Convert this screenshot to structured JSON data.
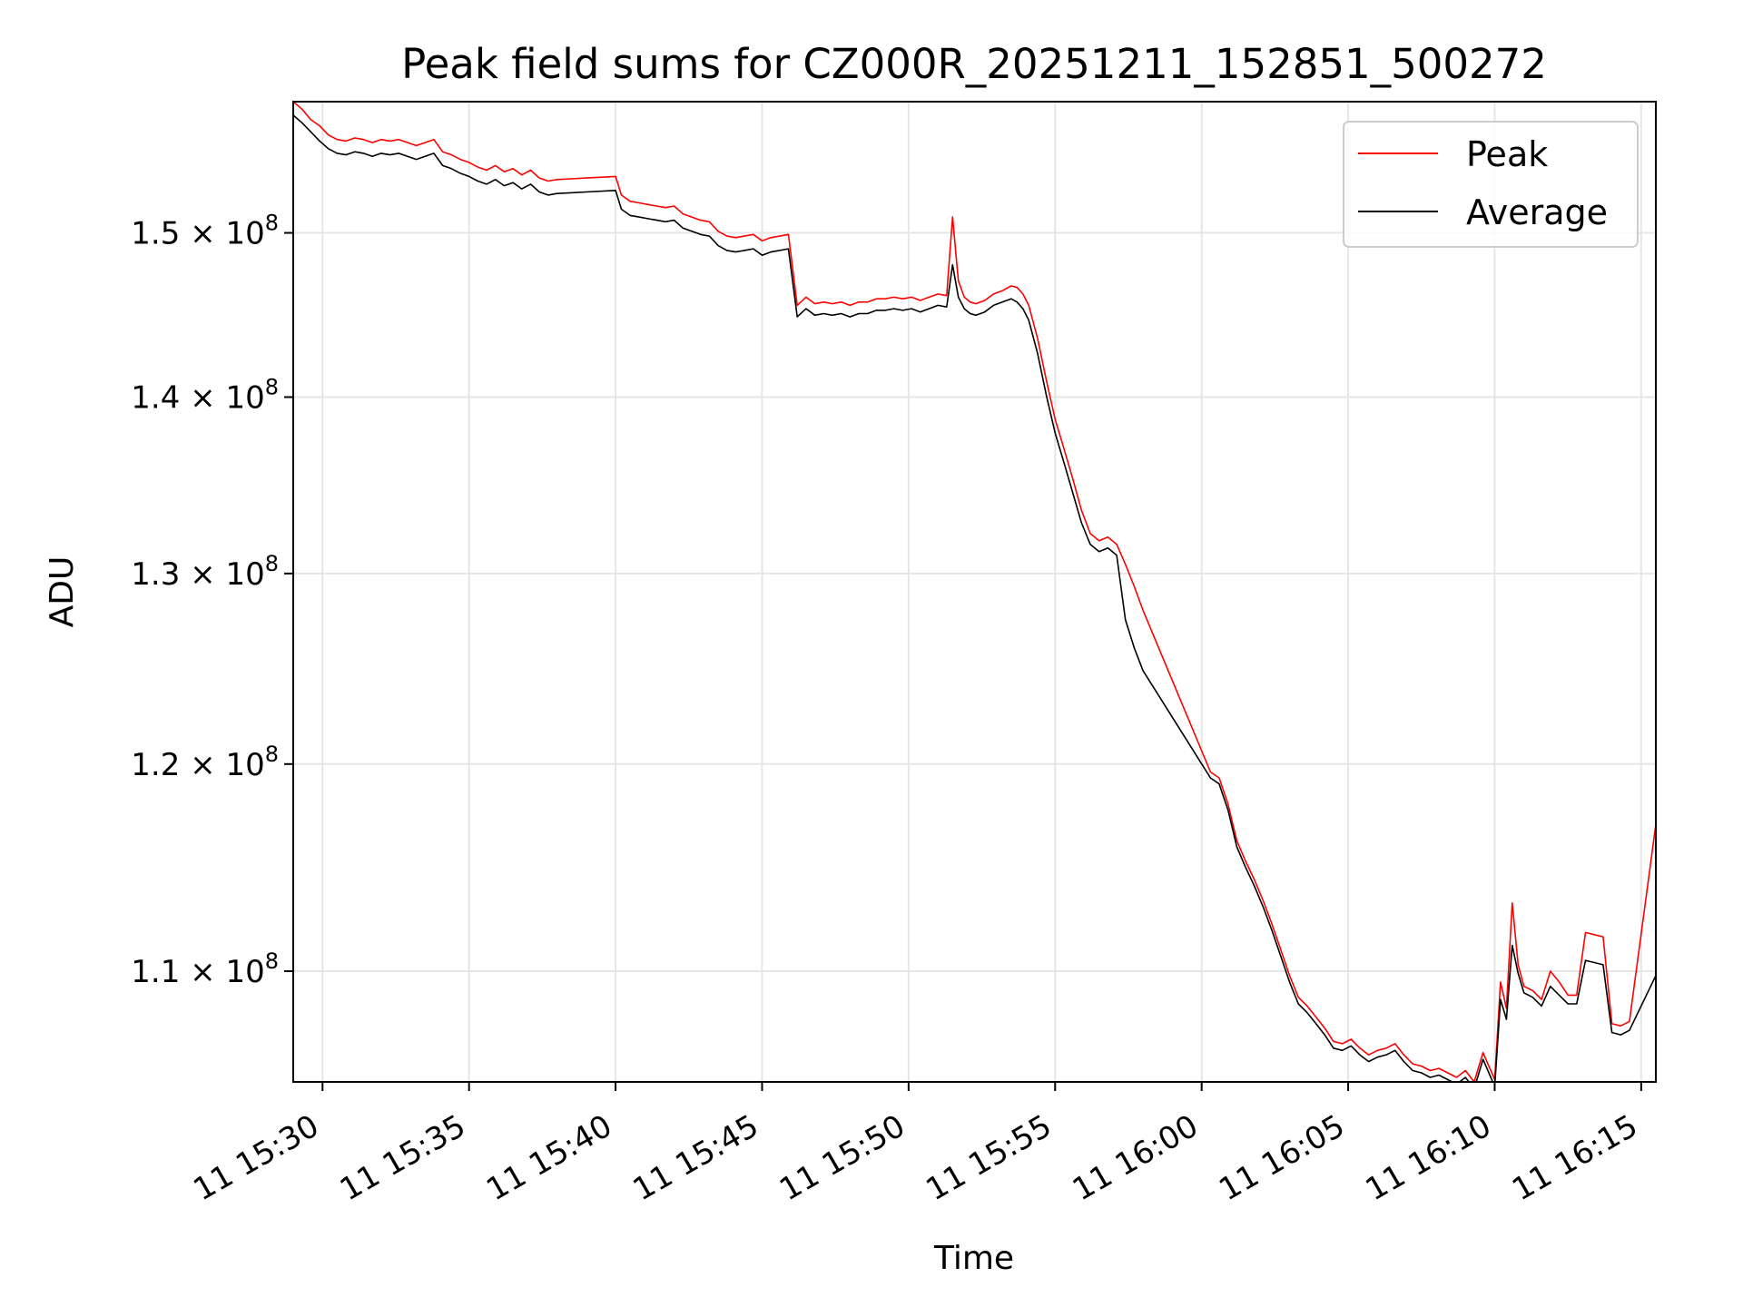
{
  "chart_data": {
    "type": "line",
    "title": "Peak field sums for CZ000R_20251211_152851_500272",
    "xlabel": "Time",
    "ylabel": "ADU",
    "yscale": "log",
    "xlim": [
      -1.0,
      45.5
    ],
    "ylim": [
      105000000,
      158500000
    ],
    "grid": true,
    "legend_position": "top-right",
    "x_ticks": [
      {
        "value": 0,
        "label": "11 15:30"
      },
      {
        "value": 5,
        "label": "11 15:35"
      },
      {
        "value": 10,
        "label": "11 15:40"
      },
      {
        "value": 15,
        "label": "11 15:45"
      },
      {
        "value": 20,
        "label": "11 15:50"
      },
      {
        "value": 25,
        "label": "11 15:55"
      },
      {
        "value": 30,
        "label": "11 16:00"
      },
      {
        "value": 35,
        "label": "11 16:05"
      },
      {
        "value": 40,
        "label": "11 16:10"
      },
      {
        "value": 45,
        "label": "11 16:15"
      }
    ],
    "y_ticks": [
      {
        "value": 110000000,
        "mantissa": "1.1",
        "exp": "8"
      },
      {
        "value": 120000000,
        "mantissa": "1.2",
        "exp": "8"
      },
      {
        "value": 130000000,
        "mantissa": "1.3",
        "exp": "8"
      },
      {
        "value": 140000000,
        "mantissa": "1.4",
        "exp": "8"
      },
      {
        "value": 150000000,
        "mantissa": "1.5",
        "exp": "8"
      }
    ],
    "x_reference": "minutes after 11 15:30",
    "series": [
      {
        "name": "Peak",
        "color": "#ff0000",
        "x": [
          -1.0,
          -0.7,
          -0.4,
          -0.1,
          0.2,
          0.5,
          0.8,
          1.1,
          1.4,
          1.7,
          2.0,
          2.3,
          2.6,
          2.9,
          3.2,
          3.5,
          3.8,
          4.1,
          4.4,
          4.7,
          5.0,
          5.3,
          5.6,
          5.9,
          6.2,
          6.5,
          6.8,
          7.1,
          7.4,
          7.7,
          8.0,
          9.0,
          10.0,
          10.2,
          10.5,
          10.8,
          11.1,
          11.4,
          11.7,
          12.0,
          12.3,
          12.6,
          12.9,
          13.2,
          13.5,
          13.8,
          14.1,
          14.4,
          14.7,
          15.0,
          15.3,
          15.6,
          15.9,
          16.2,
          16.5,
          16.8,
          17.1,
          17.4,
          17.7,
          18.0,
          18.3,
          18.6,
          18.9,
          19.2,
          19.5,
          19.8,
          20.1,
          20.4,
          20.7,
          21.0,
          21.3,
          21.5,
          21.7,
          21.9,
          22.1,
          22.3,
          22.6,
          22.9,
          23.2,
          23.5,
          23.7,
          23.9,
          24.1,
          24.4,
          24.7,
          25.0,
          25.3,
          25.6,
          25.9,
          26.2,
          26.5,
          26.8,
          27.1,
          27.4,
          27.7,
          28.0,
          30.3,
          30.6,
          30.9,
          31.2,
          31.5,
          31.8,
          32.1,
          32.4,
          32.7,
          33.0,
          33.3,
          33.6,
          33.9,
          34.2,
          34.5,
          34.8,
          35.1,
          35.4,
          35.7,
          36.0,
          36.3,
          36.6,
          36.9,
          37.2,
          37.5,
          37.8,
          38.1,
          38.4,
          38.7,
          39.0,
          39.3,
          39.6,
          40.0,
          40.2,
          40.4,
          40.6,
          40.8,
          41.0,
          41.3,
          41.6,
          41.9,
          42.2,
          42.5,
          42.8,
          43.1,
          43.4,
          43.7,
          44.0,
          44.3,
          44.6,
          45.5
        ],
        "values": [
          158500000,
          158000000,
          157300000,
          156900000,
          156300000,
          156000000,
          155900000,
          156100000,
          156000000,
          155800000,
          156000000,
          155900000,
          156000000,
          155800000,
          155600000,
          155800000,
          156000000,
          155200000,
          155000000,
          154700000,
          154500000,
          154200000,
          154000000,
          154300000,
          153900000,
          154100000,
          153700000,
          154000000,
          153500000,
          153300000,
          153400000,
          153500000,
          153600000,
          152400000,
          152000000,
          151900000,
          151800000,
          151700000,
          151600000,
          151700000,
          151200000,
          151000000,
          150800000,
          150700000,
          150100000,
          149800000,
          149700000,
          149800000,
          149900000,
          149500000,
          149700000,
          149800000,
          149900000,
          145500000,
          146000000,
          145600000,
          145700000,
          145600000,
          145700000,
          145500000,
          145700000,
          145700000,
          145900000,
          145900000,
          146000000,
          145900000,
          146000000,
          145800000,
          146000000,
          146200000,
          146100000,
          151000000,
          147000000,
          146000000,
          145700000,
          145600000,
          145800000,
          146200000,
          146400000,
          146700000,
          146600000,
          146200000,
          145500000,
          143500000,
          141000000,
          138700000,
          137000000,
          135300000,
          133500000,
          132200000,
          131800000,
          132000000,
          131600000,
          130500000,
          129300000,
          128000000,
          119600000,
          119300000,
          118000000,
          116200000,
          115200000,
          114300000,
          113300000,
          112200000,
          111000000,
          109800000,
          108800000,
          108400000,
          107900000,
          107400000,
          106800000,
          106700000,
          106900000,
          106500000,
          106200000,
          106400000,
          106500000,
          106700000,
          106200000,
          105800000,
          105700000,
          105500000,
          105600000,
          105400000,
          105200000,
          105500000,
          105000000,
          106300000,
          105100000,
          109500000,
          108300000,
          113200000,
          110300000,
          109300000,
          109100000,
          108700000,
          110000000,
          109500000,
          108900000,
          108900000,
          111800000,
          111700000,
          111600000,
          107600000,
          107500000,
          107700000,
          117000000
        ]
      },
      {
        "name": "Average",
        "color": "#000000",
        "x": [
          -1.0,
          -0.7,
          -0.4,
          -0.1,
          0.2,
          0.5,
          0.8,
          1.1,
          1.4,
          1.7,
          2.0,
          2.3,
          2.6,
          2.9,
          3.2,
          3.5,
          3.8,
          4.1,
          4.4,
          4.7,
          5.0,
          5.3,
          5.6,
          5.9,
          6.2,
          6.5,
          6.8,
          7.1,
          7.4,
          7.7,
          8.0,
          9.0,
          10.0,
          10.2,
          10.5,
          10.8,
          11.1,
          11.4,
          11.7,
          12.0,
          12.3,
          12.6,
          12.9,
          13.2,
          13.5,
          13.8,
          14.1,
          14.4,
          14.7,
          15.0,
          15.3,
          15.6,
          15.9,
          16.2,
          16.5,
          16.8,
          17.1,
          17.4,
          17.7,
          18.0,
          18.3,
          18.6,
          18.9,
          19.2,
          19.5,
          19.8,
          20.1,
          20.4,
          20.7,
          21.0,
          21.3,
          21.5,
          21.7,
          21.9,
          22.1,
          22.3,
          22.6,
          22.9,
          23.2,
          23.5,
          23.7,
          23.9,
          24.1,
          24.4,
          24.7,
          25.0,
          25.3,
          25.6,
          25.9,
          26.2,
          26.5,
          26.8,
          27.1,
          27.4,
          27.7,
          28.0,
          30.3,
          30.6,
          30.9,
          31.2,
          31.5,
          31.8,
          32.1,
          32.4,
          32.7,
          33.0,
          33.3,
          33.6,
          33.9,
          34.2,
          34.5,
          34.8,
          35.1,
          35.4,
          35.7,
          36.0,
          36.3,
          36.6,
          36.9,
          37.2,
          37.5,
          37.8,
          38.1,
          38.4,
          38.7,
          39.0,
          39.3,
          39.6,
          40.0,
          40.2,
          40.4,
          40.6,
          40.8,
          41.0,
          41.3,
          41.6,
          41.9,
          42.2,
          42.5,
          42.8,
          43.1,
          43.4,
          43.7,
          44.0,
          44.3,
          44.6,
          45.5
        ],
        "values": [
          157600000,
          157100000,
          156500000,
          155900000,
          155400000,
          155100000,
          155000000,
          155200000,
          155100000,
          154900000,
          155100000,
          155000000,
          155100000,
          154900000,
          154700000,
          154900000,
          155100000,
          154300000,
          154100000,
          153800000,
          153600000,
          153300000,
          153100000,
          153400000,
          153000000,
          153200000,
          152800000,
          153100000,
          152600000,
          152400000,
          152500000,
          152600000,
          152700000,
          151500000,
          151100000,
          151000000,
          150900000,
          150800000,
          150700000,
          150800000,
          150300000,
          150100000,
          149900000,
          149800000,
          149200000,
          148900000,
          148800000,
          148900000,
          149000000,
          148600000,
          148800000,
          148900000,
          149000000,
          144800000,
          145300000,
          144900000,
          145000000,
          144900000,
          145000000,
          144800000,
          145000000,
          145000000,
          145200000,
          145200000,
          145300000,
          145200000,
          145300000,
          145100000,
          145300000,
          145500000,
          145400000,
          148000000,
          146000000,
          145300000,
          145000000,
          144900000,
          145100000,
          145500000,
          145700000,
          145900000,
          145700000,
          145300000,
          144600000,
          142600000,
          140100000,
          137900000,
          136200000,
          134500000,
          132800000,
          131600000,
          131200000,
          131400000,
          131000000,
          127500000,
          126000000,
          124800000,
          119300000,
          119000000,
          117700000,
          115900000,
          114900000,
          114000000,
          113000000,
          111900000,
          110700000,
          109500000,
          108500000,
          108100000,
          107600000,
          107100000,
          106500000,
          106400000,
          106600000,
          106200000,
          105900000,
          106100000,
          106200000,
          106400000,
          105900000,
          105500000,
          105400000,
          105200000,
          105300000,
          105100000,
          104900000,
          105200000,
          104700000,
          106000000,
          104800000,
          108700000,
          107800000,
          111200000,
          109900000,
          109000000,
          108800000,
          108400000,
          109300000,
          108900000,
          108500000,
          108500000,
          110500000,
          110400000,
          110300000,
          107200000,
          107100000,
          107300000,
          109800000
        ]
      }
    ]
  }
}
